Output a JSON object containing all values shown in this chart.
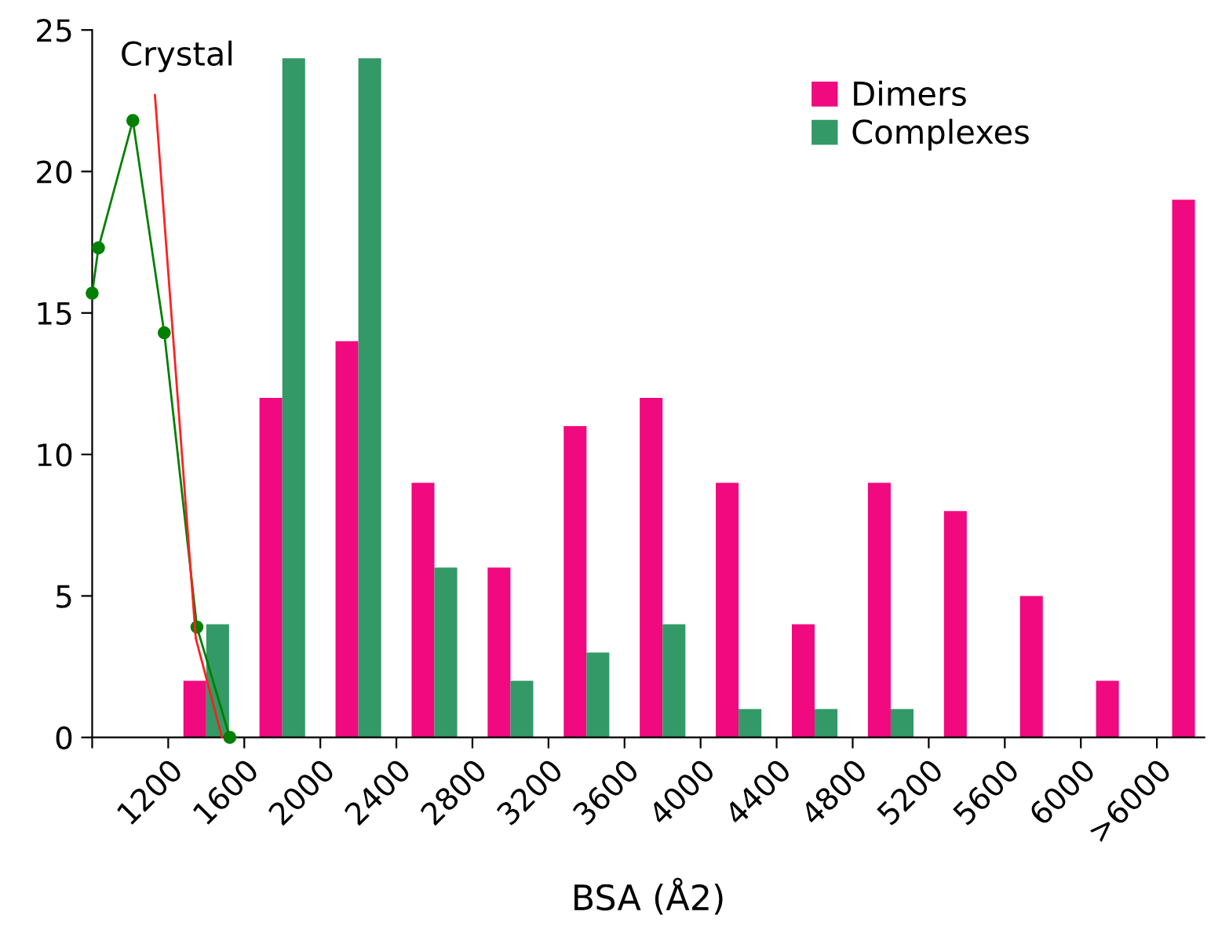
{
  "chart_data": {
    "type": "bar",
    "x": [
      1400,
      1800,
      2200,
      2600,
      3000,
      3400,
      3800,
      4200,
      4600,
      5000,
      5400,
      5800,
      6200,
      6600
    ],
    "series": [
      {
        "name": "Dimers",
        "color": "#f0097f",
        "values": [
          2,
          12,
          14,
          9,
          6,
          11,
          12,
          9,
          4,
          9,
          8,
          5,
          2,
          19
        ]
      },
      {
        "name": "Complexes",
        "color": "#339966",
        "values": [
          4,
          24,
          24,
          6,
          2,
          3,
          4,
          1,
          1,
          1,
          0,
          0,
          0,
          0
        ]
      },
      {
        "type": "line",
        "color": "#008000",
        "marker": "circle",
        "x": [
          800,
          833,
          1014,
          1179,
          1351,
          1524
        ],
        "values": [
          15.7,
          17.3,
          21.8,
          14.3,
          3.9,
          0
        ]
      },
      {
        "type": "line",
        "color": "#ff2020",
        "marker": "none",
        "x": [
          1130,
          1345,
          1483
        ],
        "values": [
          22.7,
          3.5,
          0
        ]
      }
    ],
    "annotations": [
      "Crystal"
    ],
    "xlabel": "BSA (Å2)",
    "xlim": [
      800,
      6650
    ],
    "xticks": [
      {
        "value": 800,
        "label": null
      },
      1200,
      1600,
      2000,
      2400,
      2800,
      3200,
      3600,
      4000,
      4400,
      4800,
      5200,
      5600,
      6000,
      {
        "value": 6400,
        "label": ">6000"
      }
    ],
    "ylim": [
      0,
      25
    ],
    "yticks": [
      0,
      5,
      10,
      15,
      20,
      25
    ],
    "grid": false,
    "legend": "top right"
  }
}
